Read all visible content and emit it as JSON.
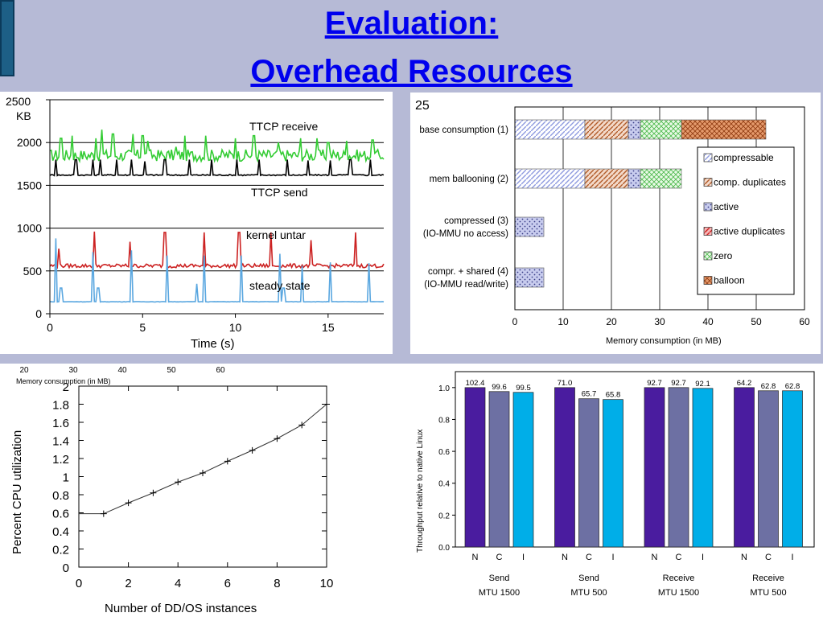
{
  "title": {
    "line1": "Evaluation:",
    "line2": "Overhead Resources"
  },
  "chart_data": [
    {
      "type": "line",
      "ylabel_unit": "KB",
      "xlabel": "Time (s)",
      "xlim": [
        0,
        18
      ],
      "ylim": [
        0,
        2500
      ],
      "xticks": [
        "0",
        "5",
        "10",
        "15"
      ],
      "yticks": [
        "0",
        "500",
        "1000",
        "1500",
        "2000",
        "2500"
      ],
      "grid": "horizontal",
      "annotations": [
        "TTCP receive",
        "TTCP send",
        "kernel untar",
        "steady state"
      ],
      "series": [
        {
          "label": "TTCP receive",
          "color": "#33cc33",
          "base": 1850,
          "noise": 140,
          "peaks": [
            [
              0.6,
              2050
            ],
            [
              1.2,
              2080
            ],
            [
              2.5,
              2050
            ],
            [
              2.8,
              2150
            ],
            [
              3.4,
              2100
            ],
            [
              4.5,
              2100
            ],
            [
              5.0,
              2080
            ],
            [
              5.3,
              2020
            ],
            [
              6.8,
              1950
            ],
            [
              7.3,
              2080
            ],
            [
              8.4,
              2080
            ],
            [
              10.0,
              2050
            ],
            [
              11.0,
              2080
            ],
            [
              12.3,
              2000
            ],
            [
              13.5,
              2050
            ],
            [
              14.4,
              2050
            ],
            [
              15.0,
              2000
            ],
            [
              16.0,
              2020
            ],
            [
              17.4,
              2030
            ]
          ]
        },
        {
          "label": "TTCP send",
          "color": "#000000",
          "base": 1620,
          "noise": 15,
          "peaks": [
            [
              0.3,
              1800
            ],
            [
              1.4,
              1800
            ],
            [
              2.3,
              1800
            ],
            [
              2.7,
              1800
            ],
            [
              3.6,
              1800
            ],
            [
              4.4,
              1800
            ],
            [
              5.1,
              1780
            ],
            [
              6.2,
              1800
            ],
            [
              7.5,
              1800
            ],
            [
              8.7,
              1800
            ],
            [
              10.1,
              1800
            ],
            [
              11.3,
              1800
            ],
            [
              12.8,
              1800
            ],
            [
              13.9,
              1790
            ],
            [
              15.1,
              1790
            ],
            [
              16.2,
              1800
            ],
            [
              17.3,
              1800
            ]
          ]
        },
        {
          "label": "kernel untar",
          "color": "#cc2222",
          "base": 560,
          "noise": 45,
          "peaks": [
            [
              0.5,
              760
            ],
            [
              2.4,
              960
            ],
            [
              4.3,
              840
            ],
            [
              6.2,
              950
            ],
            [
              8.3,
              950
            ],
            [
              10.2,
              950
            ],
            [
              11.9,
              950
            ],
            [
              14.1,
              860
            ],
            [
              16.5,
              950
            ]
          ]
        },
        {
          "label": "steady state",
          "color": "#5aa7e0",
          "base": 140,
          "noise": 5,
          "peaks": [
            [
              0.3,
              880
            ],
            [
              2.3,
              720
            ],
            [
              4.4,
              740
            ],
            [
              6.3,
              680
            ],
            [
              8.3,
              680
            ],
            [
              10.3,
              680
            ],
            [
              12.4,
              700
            ],
            [
              13.6,
              560
            ],
            [
              15.1,
              600
            ],
            [
              17.2,
              590
            ],
            [
              0.6,
              300
            ],
            [
              2.6,
              300
            ],
            [
              7.9,
              350
            ],
            [
              12.6,
              300
            ]
          ]
        }
      ]
    },
    {
      "type": "bar",
      "orientation": "horizontal",
      "stacked": true,
      "xlabel": "Memory consumption (in MB)",
      "xlim": [
        0,
        60
      ],
      "xticks": [
        "0",
        "10",
        "20",
        "30",
        "40",
        "50",
        "60"
      ],
      "ytop_label": "25",
      "categories": [
        "base consumption (1)",
        "mem ballooning (2)",
        "compressed (3)\n(IO-MMU no access)",
        "compr. + shared (4)\n(IO-MMU read/write)"
      ],
      "legend_position": "right",
      "series": [
        {
          "name": "compressable",
          "color": "#c6cdf0",
          "values": [
            14.5,
            14.5,
            0,
            0
          ]
        },
        {
          "name": "comp. duplicates",
          "color": "#c47a52",
          "values": [
            9,
            9,
            0,
            0
          ]
        },
        {
          "name": "active",
          "color": "#8a8fc8",
          "values": [
            2.5,
            2.5,
            6,
            6
          ]
        },
        {
          "name": "active duplicates",
          "color": "#d84545",
          "values": [
            0,
            0,
            0,
            0
          ]
        },
        {
          "name": "zero",
          "color": "#bfeebb",
          "values": [
            8.5,
            8.5,
            0,
            0
          ]
        },
        {
          "name": "balloon",
          "color": "#d07a4a",
          "values": [
            17.5,
            0,
            0,
            0
          ]
        }
      ]
    },
    {
      "type": "line",
      "xlabel": "Number of DD/OS instances",
      "ylabel": "Percent CPU utilization",
      "xlim": [
        0,
        10
      ],
      "ylim": [
        0,
        2
      ],
      "xticks": [
        "0",
        "2",
        "4",
        "6",
        "8",
        "10"
      ],
      "yticks": [
        "0",
        "0.2",
        "0.4",
        "0.6",
        "0.8",
        "1",
        "1.2",
        "1.4",
        "1.6",
        "1.8",
        "2"
      ],
      "top_ticks": [
        "20",
        "30",
        "40",
        "50",
        "60"
      ],
      "top_label": "Memory consumption (in MB)",
      "x": [
        1,
        2,
        3,
        4,
        5,
        6,
        7,
        8,
        9,
        10
      ],
      "values": [
        0.59,
        0.71,
        0.82,
        0.94,
        1.04,
        1.17,
        1.29,
        1.42,
        1.57,
        1.8
      ],
      "start": [
        0,
        0.59
      ]
    },
    {
      "type": "bar",
      "ylabel": "Throughput relative to native Linux",
      "ylim": [
        0,
        1.1
      ],
      "yticks": [
        "0.0",
        "0.2",
        "0.4",
        "0.6",
        "0.8",
        "1.0"
      ],
      "groups": [
        {
          "label": "Send",
          "sub": "MTU 1500",
          "bars": [
            "N",
            "C",
            "I"
          ],
          "values": [
            1.0,
            0.975,
            0.97
          ],
          "labels": [
            "102.4",
            "99.6",
            "99.5"
          ]
        },
        {
          "label": "Send",
          "sub": "MTU 500",
          "bars": [
            "N",
            "C",
            "I"
          ],
          "values": [
            1.0,
            0.93,
            0.925
          ],
          "labels": [
            "71.0",
            "65.7",
            "65.8"
          ]
        },
        {
          "label": "Receive",
          "sub": "MTU 1500",
          "bars": [
            "N",
            "C",
            "I"
          ],
          "values": [
            1.0,
            1.0,
            0.995
          ],
          "labels": [
            "92.7",
            "92.7",
            "92.1"
          ]
        },
        {
          "label": "Receive",
          "sub": "MTU 500",
          "bars": [
            "N",
            "C",
            "I"
          ],
          "values": [
            1.0,
            0.98,
            0.98
          ],
          "labels": [
            "64.2",
            "62.8",
            "62.8"
          ]
        }
      ],
      "colors": [
        "#4a1c9f",
        "#6d70a3",
        "#00aee8"
      ]
    }
  ]
}
